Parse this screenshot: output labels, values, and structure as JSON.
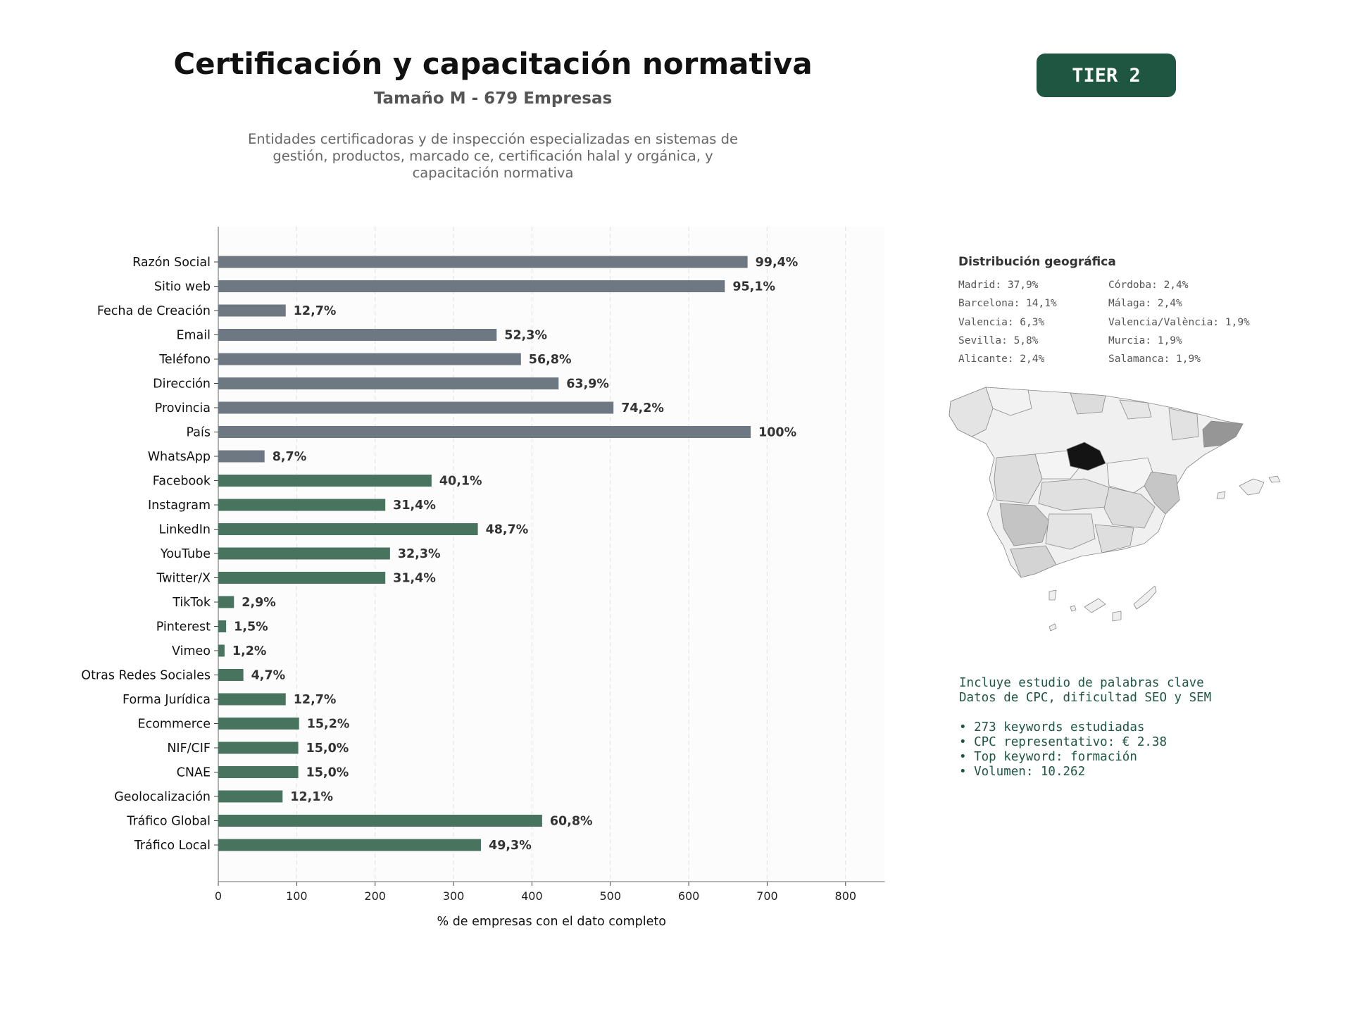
{
  "header": {
    "title": "Certificación y capacitación normativa",
    "subtitle": "Tamaño M - 679 Empresas",
    "description_lines": [
      "Entidades certificadoras y de inspección especializadas en sistemas de",
      "gestión, productos, marcado ce, certificación halal y orgánica, y",
      "capacitación normativa"
    ],
    "tier_label": "TIER 2"
  },
  "chart_data": {
    "type": "bar",
    "orientation": "horizontal",
    "xlabel": "% de empresas con el dato completo",
    "ylabel": "",
    "xlim": [
      0,
      850
    ],
    "xticks": [
      0,
      100,
      200,
      300,
      400,
      500,
      600,
      700,
      800
    ],
    "grid": "vertical-dashed",
    "colors": {
      "contact": "#6e7882",
      "digital": "#48745f"
    },
    "categories": [
      "Razón Social",
      "Sitio web",
      "Fecha de Creación",
      "Email",
      "Teléfono",
      "Dirección",
      "Provincia",
      "País",
      "WhatsApp",
      "Facebook",
      "Instagram",
      "LinkedIn",
      "YouTube",
      "Twitter/X",
      "TikTok",
      "Pinterest",
      "Vimeo",
      "Otras Redes Sociales",
      "Forma Jurídica",
      "Ecommerce",
      "NIF/CIF",
      "CNAE",
      "Geolocalización",
      "Tráfico Global",
      "Tráfico Local"
    ],
    "values": [
      675,
      646,
      86,
      355,
      386,
      434,
      504,
      679,
      59,
      272,
      213,
      331,
      219,
      213,
      20,
      10,
      8,
      32,
      86,
      103,
      102,
      102,
      82,
      413,
      335
    ],
    "labels": [
      "99,4%",
      "95,1%",
      "12,7%",
      "52,3%",
      "56,8%",
      "63,9%",
      "74,2%",
      "100%",
      "8,7%",
      "40,1%",
      "31,4%",
      "48,7%",
      "32,3%",
      "31,4%",
      "2,9%",
      "1,5%",
      "1,2%",
      "4,7%",
      "12,7%",
      "15,2%",
      "15,0%",
      "15,0%",
      "12,1%",
      "60,8%",
      "49,3%"
    ],
    "groups": [
      "contact",
      "contact",
      "contact",
      "contact",
      "contact",
      "contact",
      "contact",
      "contact",
      "contact",
      "digital",
      "digital",
      "digital",
      "digital",
      "digital",
      "digital",
      "digital",
      "digital",
      "digital",
      "digital",
      "digital",
      "digital",
      "digital",
      "digital",
      "digital",
      "digital"
    ]
  },
  "geo": {
    "title": "Distribución geográfica",
    "col1": [
      "Madrid: 37,9%",
      "Barcelona: 14,1%",
      "Valencia: 6,3%",
      "Sevilla: 5,8%",
      "Alicante: 2,4%"
    ],
    "col2": [
      "Córdoba: 2,4%",
      "Málaga: 2,4%",
      "Valencia/València: 1,9%",
      "Murcia: 1,9%",
      "Salamanca: 1,9%"
    ]
  },
  "keywords": {
    "line1": "Incluye estudio de palabras clave",
    "line2": "Datos de CPC, dificultad SEO y SEM",
    "bullets": [
      "• 273 keywords estudiadas",
      "• CPC representativo: € 2.38",
      "• Top keyword: formación",
      "• Volumen: 10.262"
    ]
  }
}
